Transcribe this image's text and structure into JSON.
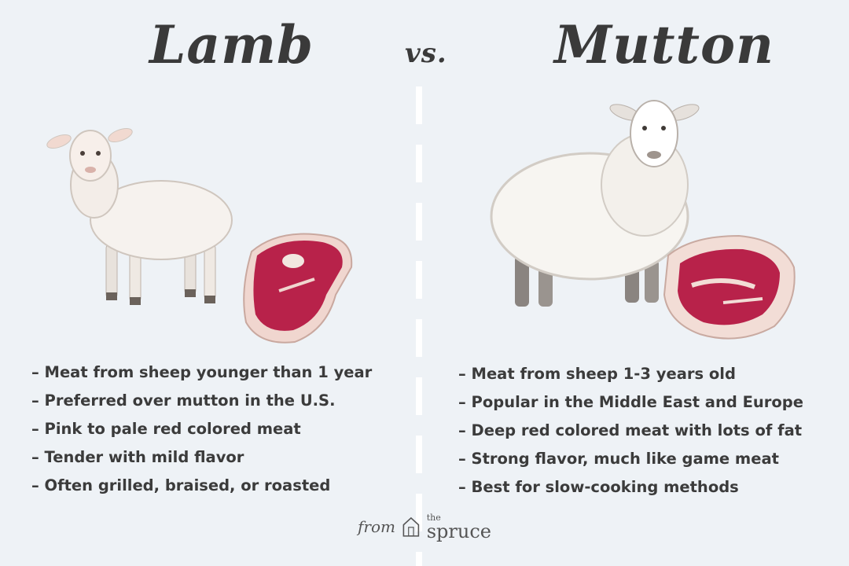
{
  "header": {
    "left_title": "Lamb",
    "vs": "vs.",
    "right_title": "Mutton"
  },
  "lamb": {
    "illustration_icon": "lamb-illustration-icon",
    "meat_icon": "lamb-cut-icon",
    "facts": [
      "Meat from sheep younger than 1 year",
      "Preferred over mutton in the U.S.",
      "Pink to pale red colored meat",
      "Tender with mild flavor",
      "Often grilled, braised, or roasted"
    ]
  },
  "mutton": {
    "illustration_icon": "sheep-illustration-icon",
    "meat_icon": "mutton-cut-icon",
    "facts": [
      "Meat from sheep 1-3 years old",
      "Popular in the Middle East and Europe",
      "Deep red colored meat with lots of fat",
      "Strong flavor, much like game meat",
      "Best for slow-cooking methods"
    ]
  },
  "footer": {
    "from": "from",
    "brand_small": "the",
    "brand_name": "spruce",
    "brand_icon": "house-logo-icon"
  },
  "colors": {
    "background": "#eef2f6",
    "text": "#3a3a3a",
    "divider": "#ffffff",
    "meat": "#b8224a",
    "fat": "#f0d6cf"
  }
}
